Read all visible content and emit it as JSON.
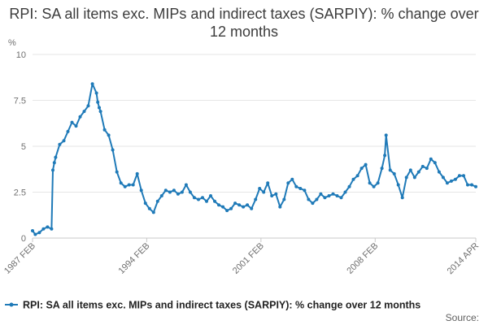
{
  "chart_data": {
    "type": "line",
    "title": "RPI: SA all items exc. MIPs and indirect taxes (SARPIY): % change over 12 months",
    "ylabel": "%",
    "xlabel": "",
    "ylim": [
      0,
      10
    ],
    "yticks": [
      {
        "value": 0,
        "label": "0"
      },
      {
        "value": 2.5,
        "label": "2.5"
      },
      {
        "value": 5,
        "label": "5"
      },
      {
        "value": 7.5,
        "label": "7.5"
      },
      {
        "value": 10,
        "label": "10"
      }
    ],
    "xlim": [
      1987.083,
      2014.25
    ],
    "xticks": [
      {
        "value": 1987.083,
        "label": "1987 FEB"
      },
      {
        "value": 1994.083,
        "label": "1994 FEB"
      },
      {
        "value": 2001.083,
        "label": "2001 FEB"
      },
      {
        "value": 2008.083,
        "label": "2008 FEB"
      },
      {
        "value": 2014.25,
        "label": "2014 APR"
      }
    ],
    "grid": true,
    "series": [
      {
        "name": "RPI: SA all items exc. MIPs and indirect taxes (SARPIY): % change over 12 months",
        "color": "#1f7ab8",
        "x": [
          1987.083,
          1987.25,
          1987.5,
          1987.75,
          1988.0,
          1988.25,
          1988.33,
          1988.42,
          1988.5,
          1988.75,
          1989.0,
          1989.25,
          1989.5,
          1989.75,
          1990.0,
          1990.25,
          1990.5,
          1990.75,
          1991.0,
          1991.08,
          1991.17,
          1991.25,
          1991.5,
          1991.75,
          1992.0,
          1992.25,
          1992.5,
          1992.75,
          1993.0,
          1993.25,
          1993.5,
          1993.75,
          1994.0,
          1994.25,
          1994.5,
          1994.75,
          1995.0,
          1995.25,
          1995.5,
          1995.75,
          1996.0,
          1996.25,
          1996.5,
          1996.75,
          1997.0,
          1997.25,
          1997.5,
          1997.75,
          1998.0,
          1998.25,
          1998.5,
          1998.75,
          1999.0,
          1999.25,
          1999.5,
          1999.75,
          2000.0,
          2000.25,
          2000.5,
          2000.75,
          2001.0,
          2001.25,
          2001.5,
          2001.75,
          2002.0,
          2002.25,
          2002.5,
          2002.75,
          2003.0,
          2003.25,
          2003.5,
          2003.75,
          2004.0,
          2004.25,
          2004.5,
          2004.75,
          2005.0,
          2005.25,
          2005.5,
          2005.75,
          2006.0,
          2006.25,
          2006.5,
          2006.75,
          2007.0,
          2007.25,
          2007.5,
          2007.75,
          2008.0,
          2008.25,
          2008.5,
          2008.67,
          2008.75,
          2009.0,
          2009.25,
          2009.5,
          2009.75,
          2010.0,
          2010.25,
          2010.5,
          2010.75,
          2011.0,
          2011.25,
          2011.5,
          2011.75,
          2012.0,
          2012.25,
          2012.5,
          2012.75,
          2013.0,
          2013.25,
          2013.5,
          2013.75,
          2014.0,
          2014.25
        ],
        "values": [
          0.4,
          0.2,
          0.3,
          0.5,
          0.6,
          0.5,
          3.7,
          4.1,
          4.4,
          5.1,
          5.3,
          5.8,
          6.3,
          6.1,
          6.6,
          6.9,
          7.2,
          8.4,
          7.9,
          7.4,
          7.1,
          6.9,
          5.9,
          5.6,
          4.8,
          3.6,
          3.0,
          2.8,
          2.9,
          2.9,
          3.5,
          2.6,
          1.9,
          1.6,
          1.4,
          2.0,
          2.3,
          2.6,
          2.5,
          2.6,
          2.4,
          2.5,
          2.9,
          2.5,
          2.2,
          2.1,
          2.2,
          2.0,
          2.3,
          2.0,
          1.8,
          1.7,
          1.5,
          1.6,
          1.9,
          1.8,
          1.7,
          1.8,
          1.6,
          2.1,
          2.7,
          2.5,
          3.0,
          2.3,
          2.4,
          1.7,
          2.1,
          3.0,
          3.2,
          2.8,
          2.7,
          2.6,
          2.1,
          1.9,
          2.1,
          2.4,
          2.2,
          2.3,
          2.4,
          2.3,
          2.2,
          2.5,
          2.8,
          3.2,
          3.4,
          3.8,
          4.0,
          3.0,
          2.8,
          3.0,
          3.8,
          4.5,
          5.6,
          3.7,
          3.5,
          2.9,
          2.2,
          3.3,
          3.7,
          3.3,
          3.6,
          3.9,
          3.8,
          4.3,
          4.1,
          3.6,
          3.3,
          3.0,
          3.1,
          3.2,
          3.4,
          3.4,
          2.9,
          2.9,
          2.8
        ]
      }
    ],
    "legend_position": "bottom",
    "source_label": "Source:"
  }
}
